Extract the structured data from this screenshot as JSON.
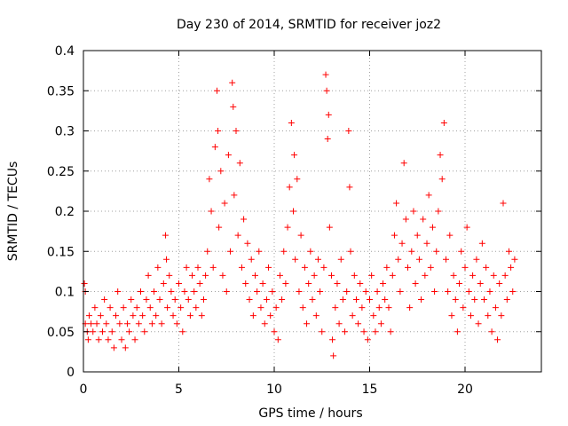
{
  "chart_data": {
    "type": "scatter",
    "title": "Day 230 of 2014, SRMTID for receiver joz2",
    "xlabel": "GPS time / hours",
    "ylabel": "SRMTID / TECUs",
    "xlim": [
      0,
      24
    ],
    "ylim": [
      0,
      0.4
    ],
    "xticks": [
      0,
      5,
      10,
      15,
      20
    ],
    "xtick_labels": [
      "0",
      "5",
      "10",
      "15",
      "20"
    ],
    "yticks": [
      0,
      0.05,
      0.1,
      0.15,
      0.2,
      0.25,
      0.3,
      0.35,
      0.4
    ],
    "ytick_labels": [
      "0",
      "0.05",
      "0.1",
      "0.15",
      "0.2",
      "0.25",
      "0.3",
      "0.35",
      "0.4"
    ],
    "grid": true,
    "marker": "+",
    "color": "#ff0000",
    "series": [
      {
        "name": "joz2",
        "points": [
          [
            0.05,
            0.11
          ],
          [
            0.1,
            0.1
          ],
          [
            0.1,
            0.06
          ],
          [
            0.2,
            0.05
          ],
          [
            0.25,
            0.04
          ],
          [
            0.3,
            0.07
          ],
          [
            0.4,
            0.06
          ],
          [
            0.5,
            0.05
          ],
          [
            0.6,
            0.08
          ],
          [
            0.7,
            0.06
          ],
          [
            0.8,
            0.04
          ],
          [
            0.9,
            0.07
          ],
          [
            1.0,
            0.05
          ],
          [
            1.1,
            0.09
          ],
          [
            1.2,
            0.06
          ],
          [
            1.3,
            0.04
          ],
          [
            1.4,
            0.08
          ],
          [
            1.5,
            0.05
          ],
          [
            1.6,
            0.03
          ],
          [
            1.7,
            0.07
          ],
          [
            1.8,
            0.1
          ],
          [
            1.9,
            0.06
          ],
          [
            2.0,
            0.04
          ],
          [
            2.1,
            0.08
          ],
          [
            2.2,
            0.03
          ],
          [
            2.3,
            0.06
          ],
          [
            2.4,
            0.05
          ],
          [
            2.5,
            0.09
          ],
          [
            2.6,
            0.07
          ],
          [
            2.7,
            0.04
          ],
          [
            2.8,
            0.08
          ],
          [
            2.9,
            0.06
          ],
          [
            3.0,
            0.1
          ],
          [
            3.1,
            0.07
          ],
          [
            3.2,
            0.05
          ],
          [
            3.3,
            0.09
          ],
          [
            3.4,
            0.12
          ],
          [
            3.5,
            0.08
          ],
          [
            3.6,
            0.06
          ],
          [
            3.7,
            0.1
          ],
          [
            3.8,
            0.07
          ],
          [
            3.9,
            0.13
          ],
          [
            4.0,
            0.09
          ],
          [
            4.1,
            0.06
          ],
          [
            4.2,
            0.11
          ],
          [
            4.3,
            0.17
          ],
          [
            4.35,
            0.14
          ],
          [
            4.4,
            0.08
          ],
          [
            4.5,
            0.12
          ],
          [
            4.6,
            0.1
          ],
          [
            4.7,
            0.07
          ],
          [
            4.8,
            0.09
          ],
          [
            4.9,
            0.06
          ],
          [
            5.0,
            0.11
          ],
          [
            5.1,
            0.08
          ],
          [
            5.2,
            0.05
          ],
          [
            5.3,
            0.1
          ],
          [
            5.4,
            0.13
          ],
          [
            5.5,
            0.09
          ],
          [
            5.6,
            0.07
          ],
          [
            5.7,
            0.12
          ],
          [
            5.8,
            0.1
          ],
          [
            5.9,
            0.08
          ],
          [
            6.0,
            0.13
          ],
          [
            6.1,
            0.11
          ],
          [
            6.2,
            0.07
          ],
          [
            6.3,
            0.09
          ],
          [
            6.4,
            0.12
          ],
          [
            6.5,
            0.15
          ],
          [
            6.6,
            0.24
          ],
          [
            6.7,
            0.2
          ],
          [
            6.8,
            0.13
          ],
          [
            6.9,
            0.28
          ],
          [
            7.0,
            0.35
          ],
          [
            7.05,
            0.3
          ],
          [
            7.1,
            0.18
          ],
          [
            7.2,
            0.25
          ],
          [
            7.3,
            0.12
          ],
          [
            7.4,
            0.21
          ],
          [
            7.5,
            0.1
          ],
          [
            7.6,
            0.27
          ],
          [
            7.7,
            0.15
          ],
          [
            7.8,
            0.36
          ],
          [
            7.85,
            0.33
          ],
          [
            7.9,
            0.22
          ],
          [
            8.0,
            0.3
          ],
          [
            8.1,
            0.17
          ],
          [
            8.2,
            0.26
          ],
          [
            8.3,
            0.13
          ],
          [
            8.4,
            0.19
          ],
          [
            8.5,
            0.11
          ],
          [
            8.6,
            0.16
          ],
          [
            8.7,
            0.09
          ],
          [
            8.8,
            0.14
          ],
          [
            8.9,
            0.07
          ],
          [
            9.0,
            0.12
          ],
          [
            9.1,
            0.1
          ],
          [
            9.2,
            0.15
          ],
          [
            9.3,
            0.08
          ],
          [
            9.4,
            0.11
          ],
          [
            9.5,
            0.06
          ],
          [
            9.6,
            0.09
          ],
          [
            9.7,
            0.13
          ],
          [
            9.8,
            0.07
          ],
          [
            9.9,
            0.1
          ],
          [
            10.0,
            0.05
          ],
          [
            10.1,
            0.08
          ],
          [
            10.2,
            0.04
          ],
          [
            10.3,
            0.12
          ],
          [
            10.4,
            0.09
          ],
          [
            10.5,
            0.15
          ],
          [
            10.6,
            0.11
          ],
          [
            10.7,
            0.18
          ],
          [
            10.8,
            0.23
          ],
          [
            10.9,
            0.31
          ],
          [
            11.0,
            0.2
          ],
          [
            11.05,
            0.27
          ],
          [
            11.1,
            0.14
          ],
          [
            11.2,
            0.24
          ],
          [
            11.3,
            0.1
          ],
          [
            11.4,
            0.17
          ],
          [
            11.5,
            0.08
          ],
          [
            11.6,
            0.13
          ],
          [
            11.7,
            0.06
          ],
          [
            11.8,
            0.11
          ],
          [
            11.9,
            0.15
          ],
          [
            12.0,
            0.09
          ],
          [
            12.1,
            0.12
          ],
          [
            12.2,
            0.07
          ],
          [
            12.3,
            0.14
          ],
          [
            12.4,
            0.1
          ],
          [
            12.5,
            0.05
          ],
          [
            12.6,
            0.13
          ],
          [
            12.7,
            0.37
          ],
          [
            12.75,
            0.35
          ],
          [
            12.8,
            0.29
          ],
          [
            12.85,
            0.32
          ],
          [
            12.9,
            0.18
          ],
          [
            13.0,
            0.12
          ],
          [
            13.05,
            0.04
          ],
          [
            13.1,
            0.02
          ],
          [
            13.2,
            0.08
          ],
          [
            13.3,
            0.11
          ],
          [
            13.4,
            0.06
          ],
          [
            13.5,
            0.14
          ],
          [
            13.6,
            0.09
          ],
          [
            13.7,
            0.05
          ],
          [
            13.8,
            0.1
          ],
          [
            13.9,
            0.3
          ],
          [
            13.95,
            0.23
          ],
          [
            14.0,
            0.15
          ],
          [
            14.1,
            0.07
          ],
          [
            14.2,
            0.12
          ],
          [
            14.3,
            0.09
          ],
          [
            14.4,
            0.06
          ],
          [
            14.5,
            0.11
          ],
          [
            14.6,
            0.08
          ],
          [
            14.7,
            0.05
          ],
          [
            14.8,
            0.1
          ],
          [
            14.9,
            0.04
          ],
          [
            15.0,
            0.09
          ],
          [
            15.1,
            0.12
          ],
          [
            15.2,
            0.07
          ],
          [
            15.3,
            0.05
          ],
          [
            15.4,
            0.1
          ],
          [
            15.5,
            0.08
          ],
          [
            15.6,
            0.06
          ],
          [
            15.7,
            0.11
          ],
          [
            15.8,
            0.09
          ],
          [
            15.9,
            0.13
          ],
          [
            16.0,
            0.08
          ],
          [
            16.1,
            0.05
          ],
          [
            16.2,
            0.12
          ],
          [
            16.3,
            0.17
          ],
          [
            16.4,
            0.21
          ],
          [
            16.5,
            0.14
          ],
          [
            16.6,
            0.1
          ],
          [
            16.7,
            0.16
          ],
          [
            16.8,
            0.26
          ],
          [
            16.9,
            0.19
          ],
          [
            17.0,
            0.13
          ],
          [
            17.1,
            0.08
          ],
          [
            17.2,
            0.15
          ],
          [
            17.3,
            0.2
          ],
          [
            17.4,
            0.11
          ],
          [
            17.5,
            0.17
          ],
          [
            17.6,
            0.14
          ],
          [
            17.7,
            0.09
          ],
          [
            17.8,
            0.19
          ],
          [
            17.9,
            0.12
          ],
          [
            18.0,
            0.16
          ],
          [
            18.1,
            0.22
          ],
          [
            18.2,
            0.13
          ],
          [
            18.3,
            0.18
          ],
          [
            18.4,
            0.1
          ],
          [
            18.5,
            0.15
          ],
          [
            18.6,
            0.2
          ],
          [
            18.7,
            0.27
          ],
          [
            18.8,
            0.24
          ],
          [
            18.9,
            0.31
          ],
          [
            19.0,
            0.14
          ],
          [
            19.1,
            0.1
          ],
          [
            19.2,
            0.17
          ],
          [
            19.3,
            0.07
          ],
          [
            19.4,
            0.12
          ],
          [
            19.5,
            0.09
          ],
          [
            19.6,
            0.05
          ],
          [
            19.7,
            0.11
          ],
          [
            19.8,
            0.15
          ],
          [
            19.9,
            0.08
          ],
          [
            20.0,
            0.13
          ],
          [
            20.1,
            0.18
          ],
          [
            20.2,
            0.1
          ],
          [
            20.3,
            0.07
          ],
          [
            20.4,
            0.12
          ],
          [
            20.5,
            0.09
          ],
          [
            20.6,
            0.14
          ],
          [
            20.7,
            0.06
          ],
          [
            20.8,
            0.11
          ],
          [
            20.9,
            0.16
          ],
          [
            21.0,
            0.09
          ],
          [
            21.1,
            0.13
          ],
          [
            21.2,
            0.07
          ],
          [
            21.3,
            0.1
          ],
          [
            21.4,
            0.05
          ],
          [
            21.5,
            0.12
          ],
          [
            21.6,
            0.08
          ],
          [
            21.7,
            0.04
          ],
          [
            21.8,
            0.11
          ],
          [
            21.9,
            0.07
          ],
          [
            22.0,
            0.21
          ],
          [
            22.1,
            0.12
          ],
          [
            22.2,
            0.09
          ],
          [
            22.3,
            0.15
          ],
          [
            22.4,
            0.13
          ],
          [
            22.5,
            0.1
          ],
          [
            22.6,
            0.14
          ]
        ]
      }
    ]
  }
}
